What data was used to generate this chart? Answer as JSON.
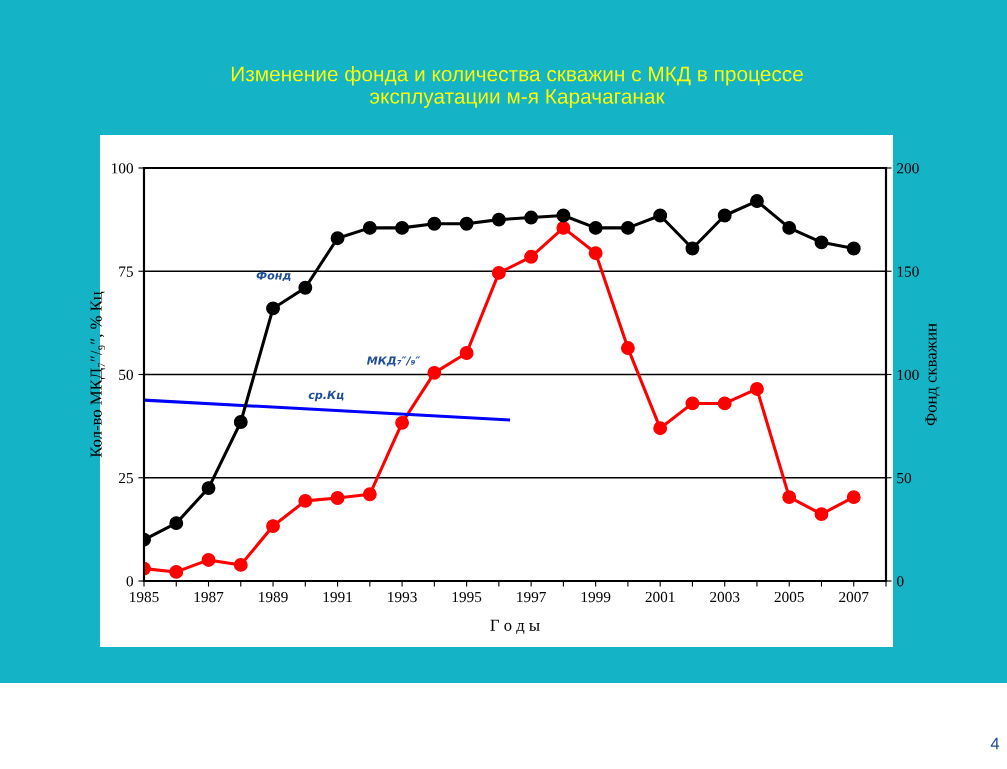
{
  "chart_data": {
    "type": "line",
    "title": "Изменение фонда и количества скважин с МКД в процессе\nэксплуатации м-я Карачаганак",
    "xlabel": "Г о д ы",
    "ylabel": "Кол-во МКД₇″/₉″, % Кц",
    "y2label": "Фонд скважин",
    "x": [
      1985,
      1986,
      1987,
      1988,
      1989,
      1990,
      1991,
      1992,
      1993,
      1994,
      1995,
      1996,
      1997,
      1998,
      1999,
      2000,
      2001,
      2002,
      2003,
      2004,
      2005,
      2006,
      2007
    ],
    "series": [
      {
        "name": "Фонд",
        "color": "#000000",
        "axis": "y2",
        "marker": "circle",
        "values": [
          20,
          28,
          45,
          77,
          132,
          142,
          166,
          171,
          171,
          173,
          173,
          175,
          176,
          177,
          171,
          171,
          177,
          161,
          177,
          184,
          171,
          164,
          161
        ]
      },
      {
        "name": "МКД₇″/₉″",
        "color": "#ff0000",
        "marker": "circle",
        "values": [
          3,
          2.2,
          5.1,
          3.9,
          13.3,
          19.4,
          20.1,
          21,
          38.3,
          50.4,
          55.2,
          74.6,
          78.5,
          85.5,
          79.4,
          56.4,
          37,
          43,
          43,
          46.5,
          20.3,
          16.2,
          20.3
        ]
      },
      {
        "name": "ср.Кц",
        "color": "#0000ff",
        "marker": "none",
        "x": [
          1985,
          1996.3
        ],
        "values": [
          43.8,
          39.0
        ]
      }
    ],
    "xlim": [
      1985,
      2008
    ],
    "xticks": [
      1985,
      {
        "value": 1986,
        "label": null
      },
      1987,
      {
        "value": 1988,
        "label": null
      },
      1989,
      {
        "value": 1990,
        "label": null
      },
      1991,
      {
        "value": 1992,
        "label": null
      },
      1993,
      {
        "value": 1994,
        "label": null
      },
      1995,
      {
        "value": 1996,
        "label": null
      },
      1997,
      {
        "value": 1998,
        "label": null
      },
      1999,
      {
        "value": 2000,
        "label": null
      },
      2001,
      {
        "value": 2002,
        "label": null
      },
      2003,
      {
        "value": 2004,
        "label": null
      },
      2005,
      {
        "value": 2006,
        "label": null
      },
      2007,
      {
        "value": 2008,
        "label": null
      }
    ],
    "ylim": [
      0,
      100
    ],
    "yticks": [
      0,
      25,
      50,
      75,
      100
    ],
    "y2lim": [
      0,
      200
    ],
    "y2ticks": [
      0,
      50,
      100,
      150,
      200
    ],
    "grid": "y",
    "legend": false,
    "line_style": "solid",
    "annotations": [
      "4"
    ]
  }
}
